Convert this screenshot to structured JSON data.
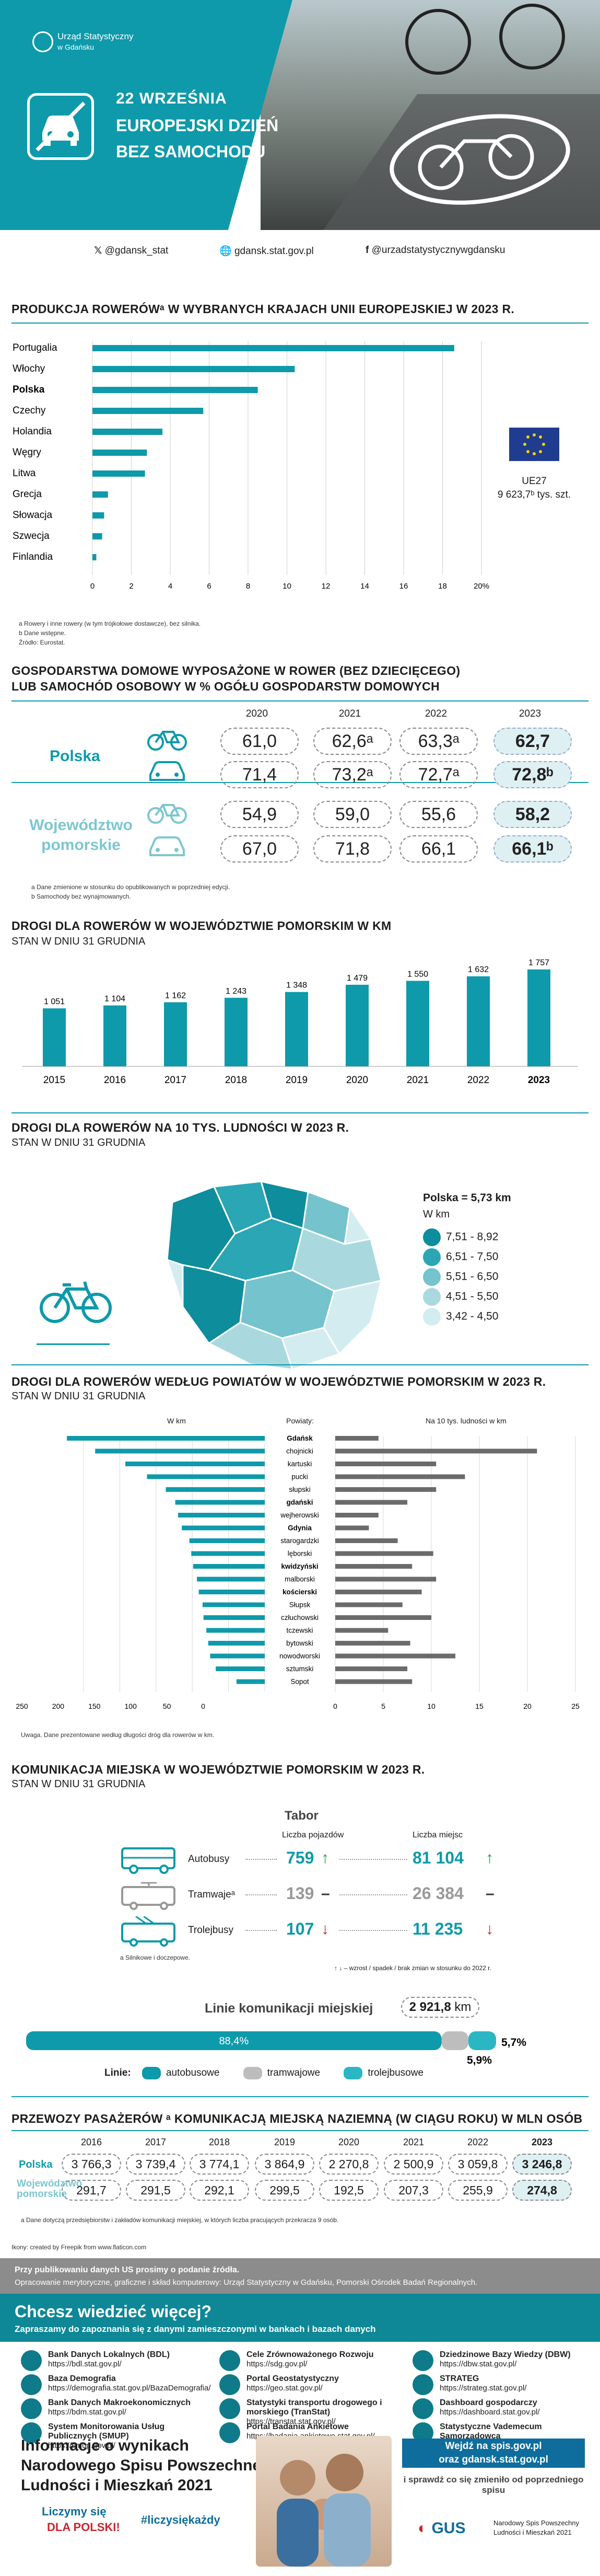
{
  "header": {
    "logo_text_1": "Urząd Statystyczny",
    "logo_text_2": "w Gdańsku",
    "date": "22 WRZEŚNIA",
    "title_1": "EUROPEJSKI DZIEŃ",
    "title_2": "BEZ SAMOCHODU"
  },
  "contacts": [
    {
      "icon": "x-icon",
      "label": "@gdansk_stat"
    },
    {
      "icon": "globe-icon",
      "label": "gdansk.stat.gov.pl"
    },
    {
      "icon": "facebook-icon",
      "label": "@urzadstatystycznywgdansku"
    }
  ],
  "section1": {
    "title": "PRODUKCJA ROWERÓWᵃ W WYBRANYCH KRAJACH UNII EUROPEJSKIEJ W 2023 R.",
    "eu_label": "UE27",
    "eu_value": "9 623,7ᵇ tys. szt.",
    "notes": [
      "a Rowery i inne rowery (w tym trójkołowe dostawcze), bez silnika.",
      "b Dane wstępne.",
      "Źródło: Eurostat."
    ],
    "accent": "#0e9aaa"
  },
  "section2": {
    "title_1": "GOSPODARSTWA DOMOWE WYPOSAŻONE W ROWER (BEZ DZIECIĘCEGO)",
    "title_2": "LUB SAMOCHÓD OSOBOWY W % OGÓŁU GOSPODARSTW DOMOWYCH",
    "years": [
      "2020",
      "2021",
      "2022",
      "2023"
    ],
    "rows": [
      {
        "group": "Polska",
        "type": "bike-icon",
        "values": [
          "61,0",
          "62,6ᵃ",
          "63,3ᵃ",
          "62,7"
        ]
      },
      {
        "group": "Polska",
        "type": "car-icon",
        "values": [
          "71,4",
          "73,2ᵃ",
          "72,7ᵃ",
          "72,8ᵇ"
        ]
      },
      {
        "group": "Województwo pomorskie",
        "type": "bike-icon",
        "values": [
          "54,9",
          "59,0",
          "55,6",
          "58,2"
        ]
      },
      {
        "group": "Województwo pomorskie",
        "type": "car-icon",
        "values": [
          "67,0",
          "71,8",
          "66,1",
          "66,1ᵇ"
        ]
      }
    ],
    "group1": "Polska",
    "group2_1": "Województwo",
    "group2_2": "pomorskie",
    "notes": [
      "a Dane zmienione w stosunku do opublikowanych w poprzedniej edycji.",
      "b Samochody bez wynajmowanych."
    ]
  },
  "section3": {
    "title": "DROGI DLA ROWERÓW W WOJEWÓDZTWIE POMORSKIM W KM",
    "subtitle": "STAN W DNIU 31 GRUDNIA"
  },
  "section4": {
    "title": "DROGI DLA ROWERÓW NA 10 TYS. LUDNOŚCI W 2023 R.",
    "subtitle": "STAN W DNIU 31 GRUDNIA",
    "poland": "Polska = 5,73 km",
    "unit": "W km",
    "legend": [
      {
        "label": "7,51 - 8,92",
        "color": "#0e8d9c"
      },
      {
        "label": "6,51 - 7,50",
        "color": "#2aa6b4"
      },
      {
        "label": "5,51 - 6,50",
        "color": "#74c3cd"
      },
      {
        "label": "4,51 - 5,50",
        "color": "#a9d9df"
      },
      {
        "label": "3,42 - 4,50",
        "color": "#d3ecef"
      }
    ]
  },
  "section5": {
    "title": "DROGI DLA ROWERÓW WEDŁUG POWIATÓW W WOJEWÓDZTWIE POMORSKIM W 2023 R.",
    "subtitle": "STAN W DNIU 31 GRUDNIA",
    "left_header": "W km",
    "mid_header": "Powiaty:",
    "right_header": "Na 10 tys. ludności w km",
    "note": "Uwaga. Dane prezentowane według długości dróg dla rowerów w km."
  },
  "section6": {
    "title": "KOMUNIKACJA MIEJSKA W WOJEWÓDZTWIE POMORSKIM W 2023 R.",
    "subtitle": "STAN W DNIU 31 GRUDNIA",
    "tabor": "Tabor",
    "col1": "Liczba pojazdów",
    "col2": "Liczba miejsc",
    "rows": [
      {
        "label": "Autobusy",
        "vehicles": "759",
        "v_arrow": "↑",
        "seats": "81 104",
        "s_arrow": "↑"
      },
      {
        "label": "Tramwajeᵃ",
        "vehicles": "139",
        "v_arrow": "–",
        "seats": "26 384",
        "s_arrow": "–"
      },
      {
        "label": "Trolejbusy",
        "vehicles": "107",
        "v_arrow": "↓",
        "seats": "11 235",
        "s_arrow": "↓"
      }
    ],
    "legend_note": "↑ ↓ – wzrost / spadek / brak zmian w stosunku do 2022 r.",
    "footnote": "a Silnikowe i doczepowe.",
    "lines_label": "Linie komunikacji miejskiej",
    "lines_value": "2 921,8",
    "lines_unit": "km",
    "share_bus": "88,4%",
    "share_tram": "5,7%",
    "share_trolley": "5,9%",
    "share_bus_value": 88.4,
    "share_tram_value": 5.7,
    "share_trolley_value": 5.9,
    "lines_legend": "Linie:",
    "legend_bus": "autobusowe",
    "legend_tram": "tramwajowe",
    "legend_trolley": "trolejbusowe"
  },
  "section7": {
    "title": "PRZEWOZY PASAŻERÓW ᵃ KOMUNIKACJĄ MIEJSKĄ NAZIEMNĄ (W CIĄGU ROKU) W MLN OSÓB",
    "years": [
      "2016",
      "2017",
      "2018",
      "2019",
      "2020",
      "2021",
      "2022",
      "2023"
    ],
    "row1_label": "Polska",
    "row1": [
      "3 766,3",
      "3 739,4",
      "3 774,1",
      "3 864,9",
      "2 270,8",
      "2 500,9",
      "3 059,8",
      "3 246,8"
    ],
    "row2_label_1": "Województwo",
    "row2_label_2": "pomorskie",
    "row2": [
      "291,7",
      "291,5",
      "292,1",
      "299,5",
      "192,5",
      "207,3",
      "255,9",
      "274,8"
    ],
    "note": "a Dane dotyczą przedsiębiorstw i zakładów komunikacji miejskiej, w których liczba pracujących przekracza 9 osób."
  },
  "credits": "Ikony: created by Freepik from www.flaticon.com",
  "footer": {
    "line1": "Przy publikowaniu danych US prosimy o podanie źródła.",
    "line2": "Opracowanie merytoryczne, graficzne i skład komputerowy: Urząd Statystyczny w Gdańsku, Pomorski Ośrodek Badań Regionalnych.",
    "cta_title": "Chcesz wiedzieć więcej?",
    "cta_sub": "Zapraszamy do zapoznania się z danymi zamieszczonymi w bankach i bazach danych"
  },
  "links": [
    {
      "name": "Bank Danych Lokalnych (BDL)",
      "url": "https://bdl.stat.gov.pl/"
    },
    {
      "name": "Baza Demografia",
      "url": "https://demografia.stat.gov.pl/BazaDemografia/"
    },
    {
      "name": "Bank Danych Makroekonomicznych",
      "url": "https://bdm.stat.gov.pl/"
    },
    {
      "name": "System Monitorowania Usług Publicznych (SMUP)",
      "url": "https://smup.gov.pl/"
    },
    {
      "name": "Cele Zrównoważonego Rozwoju",
      "url": "https://sdg.gov.pl/"
    },
    {
      "name": "Portal Geostatystyczny",
      "url": "https://geo.stat.gov.pl/"
    },
    {
      "name": "Statystyki transportu drogowego i morskiego (TranStat)",
      "url": "https://transtat.stat.gov.pl/"
    },
    {
      "name": "Portal Badania Ankietowe",
      "url": "https://badania.ankietowe.stat.gov.pl/"
    },
    {
      "name": "Dziedzinowe Bazy Wiedzy (DBW)",
      "url": "https://dbw.stat.gov.pl/"
    },
    {
      "name": "STRATEG",
      "url": "https://strateg.stat.gov.pl/"
    },
    {
      "name": "Dashboard gospodarczy",
      "url": "https://dashboard.stat.gov.pl/"
    },
    {
      "name": "Statystyczne Vademecum Samorządowca",
      "url": "https://svs.stat.gov.pl/"
    }
  ],
  "bottom": {
    "title_1": "Informacje o wynikach",
    "title_2": "Narodowego Spisu Powszechnego",
    "title_3": "Ludności i Mieszkań 2021",
    "count": "Liczymy się",
    "dla": "DLA POLSKI!",
    "hashtag": "#liczysiękażdy",
    "visit_1": "Wejdź na spis.gov.pl",
    "visit_2": "oraz gdansk.stat.gov.pl",
    "check": "i sprawdź co się zmieniło od poprzedniego spisu",
    "gus": "GUS",
    "nsp_1": "Narodowy Spis Powszechny",
    "nsp_2": "Ludności i Mieszkań 2021"
  },
  "chart_data": [
    {
      "type": "bar",
      "orientation": "horizontal",
      "title": "PRODUKCJA ROWERÓWᵃ W WYBRANYCH KRAJACH UNII EUROPEJSKIEJ W 2023 R.",
      "categories": [
        "Portugalia",
        "Włochy",
        "Polska",
        "Czechy",
        "Holandia",
        "Węgry",
        "Litwa",
        "Grecja",
        "Słowacja",
        "Szwecja",
        "Finlandia"
      ],
      "values": [
        18.6,
        10.4,
        8.5,
        5.7,
        3.6,
        2.8,
        2.7,
        0.8,
        0.6,
        0.5,
        0.2
      ],
      "xticks": [
        "0",
        "2",
        "4",
        "6",
        "8",
        "10",
        "12",
        "14",
        "16",
        "18",
        "20%"
      ],
      "xlim": [
        0,
        20
      ],
      "color": "#0e9aaa"
    },
    {
      "type": "bar",
      "title": "DROGI DLA ROWERÓW W WOJEWÓDZTWIE POMORSKIM W KM",
      "categories": [
        "2015",
        "2016",
        "2017",
        "2018",
        "2019",
        "2020",
        "2021",
        "2022",
        "2023"
      ],
      "values": [
        1051,
        1104,
        1162,
        1243,
        1348,
        1479,
        1550,
        1632,
        1757
      ],
      "labels": [
        "1 051",
        "1 104",
        "1 162",
        "1 243",
        "1 348",
        "1 479",
        "1 550",
        "1 632",
        "1 757"
      ],
      "ylim": [
        0,
        1800
      ],
      "color": "#0e9aaa"
    },
    {
      "type": "bar",
      "orientation": "horizontal-butterfly",
      "title": "DROGI DLA ROWERÓW WEDŁUG POWIATÓW W WOJEWÓDZTWIE POMORSKIM W 2023 R.",
      "categories": [
        "Gdańsk",
        "chojnicki",
        "kartuski",
        "pucki",
        "słupski",
        "gdański",
        "wejherowski",
        "Gdynia",
        "starogardzki",
        "lęborski",
        "kwidzyński",
        "malborski",
        "kościerski",
        "Słupsk",
        "człuchowski",
        "tczewski",
        "bytowski",
        "nowodworski",
        "sztumski",
        "Sopot"
      ],
      "series": [
        {
          "name": "W km",
          "values": [
            210,
            180,
            148,
            125,
            105,
            95,
            92,
            88,
            80,
            78,
            76,
            72,
            70,
            66,
            65,
            62,
            60,
            58,
            52,
            30
          ],
          "color": "#0e9aaa"
        },
        {
          "name": "Na 10 tys. ludności w km",
          "values": [
            4.5,
            21.0,
            10.5,
            13.5,
            10.5,
            7.5,
            4.5,
            3.5,
            6.5,
            10.2,
            8.0,
            10.5,
            9.0,
            7.0,
            10.0,
            5.5,
            7.8,
            12.5,
            7.5,
            8.0
          ],
          "color": "#6b6b6b"
        }
      ],
      "left_ticks": [
        "250",
        "200",
        "150",
        "100",
        "50",
        "0"
      ],
      "right_ticks": [
        "0",
        "5",
        "10",
        "15",
        "20",
        "25"
      ],
      "left_lim": [
        0,
        250
      ],
      "right_lim": [
        0,
        25
      ]
    },
    {
      "type": "bar",
      "orientation": "stacked-horizontal",
      "title": "Linie komunikacji miejskiej",
      "categories": [
        "autobusowe",
        "tramwajowe",
        "trolejbusowe"
      ],
      "values": [
        88.4,
        5.7,
        5.9
      ]
    }
  ]
}
